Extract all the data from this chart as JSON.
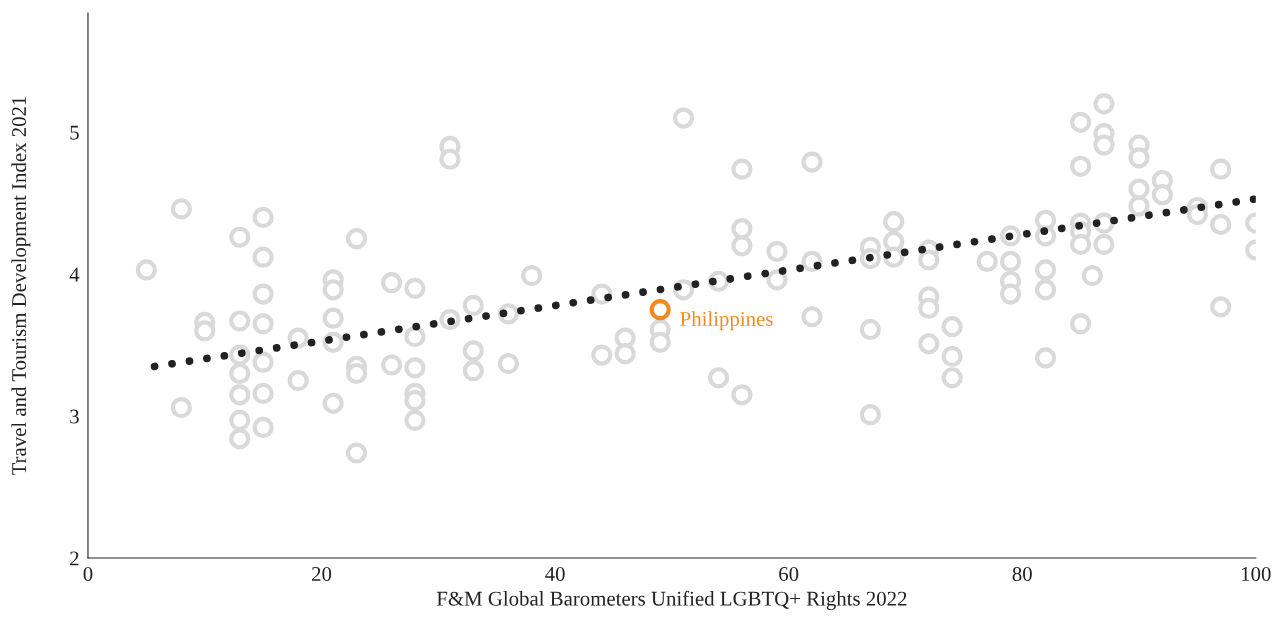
{
  "chart_data": {
    "type": "scatter",
    "xlabel": "F&M Global Barometers Unified LGBTQ+ Rights 2022",
    "ylabel": "Travel and Tourism Development Index 2021",
    "xlim": [
      0,
      100
    ],
    "ylim": [
      2,
      5.84
    ],
    "xticks": [
      0,
      20,
      40,
      60,
      80,
      100
    ],
    "yticks": [
      2,
      3,
      4,
      5
    ],
    "grid": false,
    "marker": "circle",
    "series": [
      {
        "color": "#d9d9d9",
        "x": [
          5,
          8,
          8,
          10,
          10,
          13,
          13,
          13,
          13,
          13,
          13,
          13,
          15,
          15,
          15,
          15,
          15,
          15,
          15,
          18,
          18,
          21,
          21,
          21,
          21,
          21,
          23,
          23,
          23,
          23,
          26,
          26,
          28,
          28,
          28,
          28,
          28,
          28,
          31,
          31,
          31,
          33,
          33,
          33,
          36,
          36,
          38,
          44,
          44,
          46,
          46,
          49,
          49,
          51,
          51,
          54,
          54,
          56,
          56,
          56,
          56,
          59,
          59,
          62,
          62,
          62,
          67,
          67,
          67,
          67,
          69,
          69,
          69,
          72,
          72,
          72,
          72,
          72,
          74,
          74,
          74,
          77,
          79,
          79,
          79,
          79,
          82,
          82,
          82,
          82,
          82,
          85,
          85,
          85,
          85,
          85,
          85,
          86,
          87,
          87,
          87,
          87,
          87,
          90,
          90,
          90,
          90,
          92,
          92,
          95,
          95,
          97,
          97,
          97,
          100,
          100
        ],
        "values": [
          4.03,
          4.46,
          3.06,
          3.66,
          3.6,
          4.26,
          3.67,
          3.43,
          3.3,
          3.15,
          2.97,
          2.84,
          4.4,
          4.12,
          3.86,
          3.65,
          3.38,
          3.16,
          2.92,
          3.55,
          3.25,
          3.96,
          3.89,
          3.69,
          3.52,
          3.09,
          4.25,
          3.35,
          3.3,
          2.74,
          3.94,
          3.36,
          3.9,
          3.56,
          3.34,
          3.16,
          3.11,
          2.97,
          4.9,
          4.81,
          3.68,
          3.78,
          3.46,
          3.32,
          3.72,
          3.37,
          3.99,
          3.86,
          3.43,
          3.55,
          3.44,
          3.61,
          3.52,
          5.1,
          3.89,
          3.95,
          3.27,
          4.74,
          4.32,
          4.2,
          3.15,
          4.16,
          3.96,
          4.79,
          4.09,
          3.7,
          4.19,
          4.11,
          3.61,
          3.01,
          4.37,
          4.23,
          4.12,
          4.17,
          4.1,
          3.84,
          3.76,
          3.51,
          3.63,
          3.42,
          3.27,
          4.09,
          4.27,
          4.09,
          3.95,
          3.86,
          4.38,
          4.27,
          4.03,
          3.89,
          3.41,
          5.07,
          4.76,
          4.36,
          4.3,
          4.21,
          3.65,
          3.99,
          5.2,
          4.99,
          4.91,
          4.36,
          4.21,
          4.91,
          4.82,
          4.6,
          4.48,
          4.66,
          4.56,
          4.47,
          4.42,
          4.74,
          4.35,
          3.77,
          4.36,
          4.17
        ]
      },
      {
        "type": "line",
        "color": "#222222",
        "line_style": "dotted",
        "marker": "none",
        "x": [
          5.7,
          100
        ],
        "values": [
          3.35,
          4.53
        ]
      },
      {
        "name": "Philippines",
        "color": "#f28a22",
        "x": [
          49
        ],
        "values": [
          3.75
        ]
      }
    ]
  }
}
